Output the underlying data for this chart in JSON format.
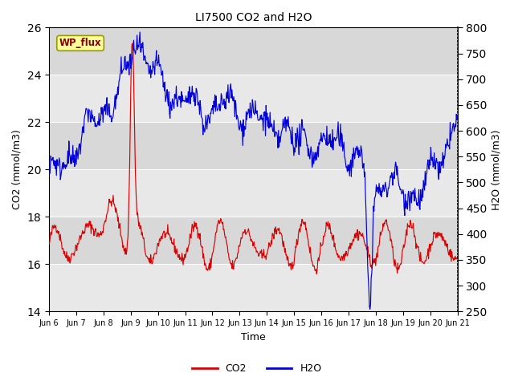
{
  "title": "LI7500 CO2 and H2O",
  "xlabel": "Time",
  "ylabel_left": "CO2 (mmol/m3)",
  "ylabel_right": "H2O (mmol/m3)",
  "ylim_left": [
    14,
    26
  ],
  "ylim_right": [
    250,
    800
  ],
  "yticks_left": [
    14,
    16,
    18,
    20,
    22,
    24,
    26
  ],
  "yticks_right": [
    250,
    300,
    350,
    400,
    450,
    500,
    550,
    600,
    650,
    700,
    750,
    800
  ],
  "fig_bg_color": "#ffffff",
  "plot_bg_color": "#d8d8d8",
  "band_color_light": "#e8e8e8",
  "co2_color": "#dd0000",
  "h2o_color": "#0000dd",
  "legend_label_co2": "CO2",
  "legend_label_h2o": "H2O",
  "wp_flux_text": "WP_flux",
  "wp_flux_bg": "#ffff99",
  "wp_flux_border": "#999900",
  "wp_flux_text_color": "#880000",
  "x_tick_labels": [
    "Jun 6",
    "Jun 7",
    "Jun 8",
    "Jun 9",
    "Jun 10",
    "Jun 11",
    "Jun 12",
    "Jun 13",
    "Jun 14",
    "Jun 15",
    "Jun 16",
    "Jun 17",
    "Jun 18",
    "Jun 19",
    "Jun 20",
    "Jun 21"
  ],
  "n_days": 15,
  "points_per_day": 48
}
